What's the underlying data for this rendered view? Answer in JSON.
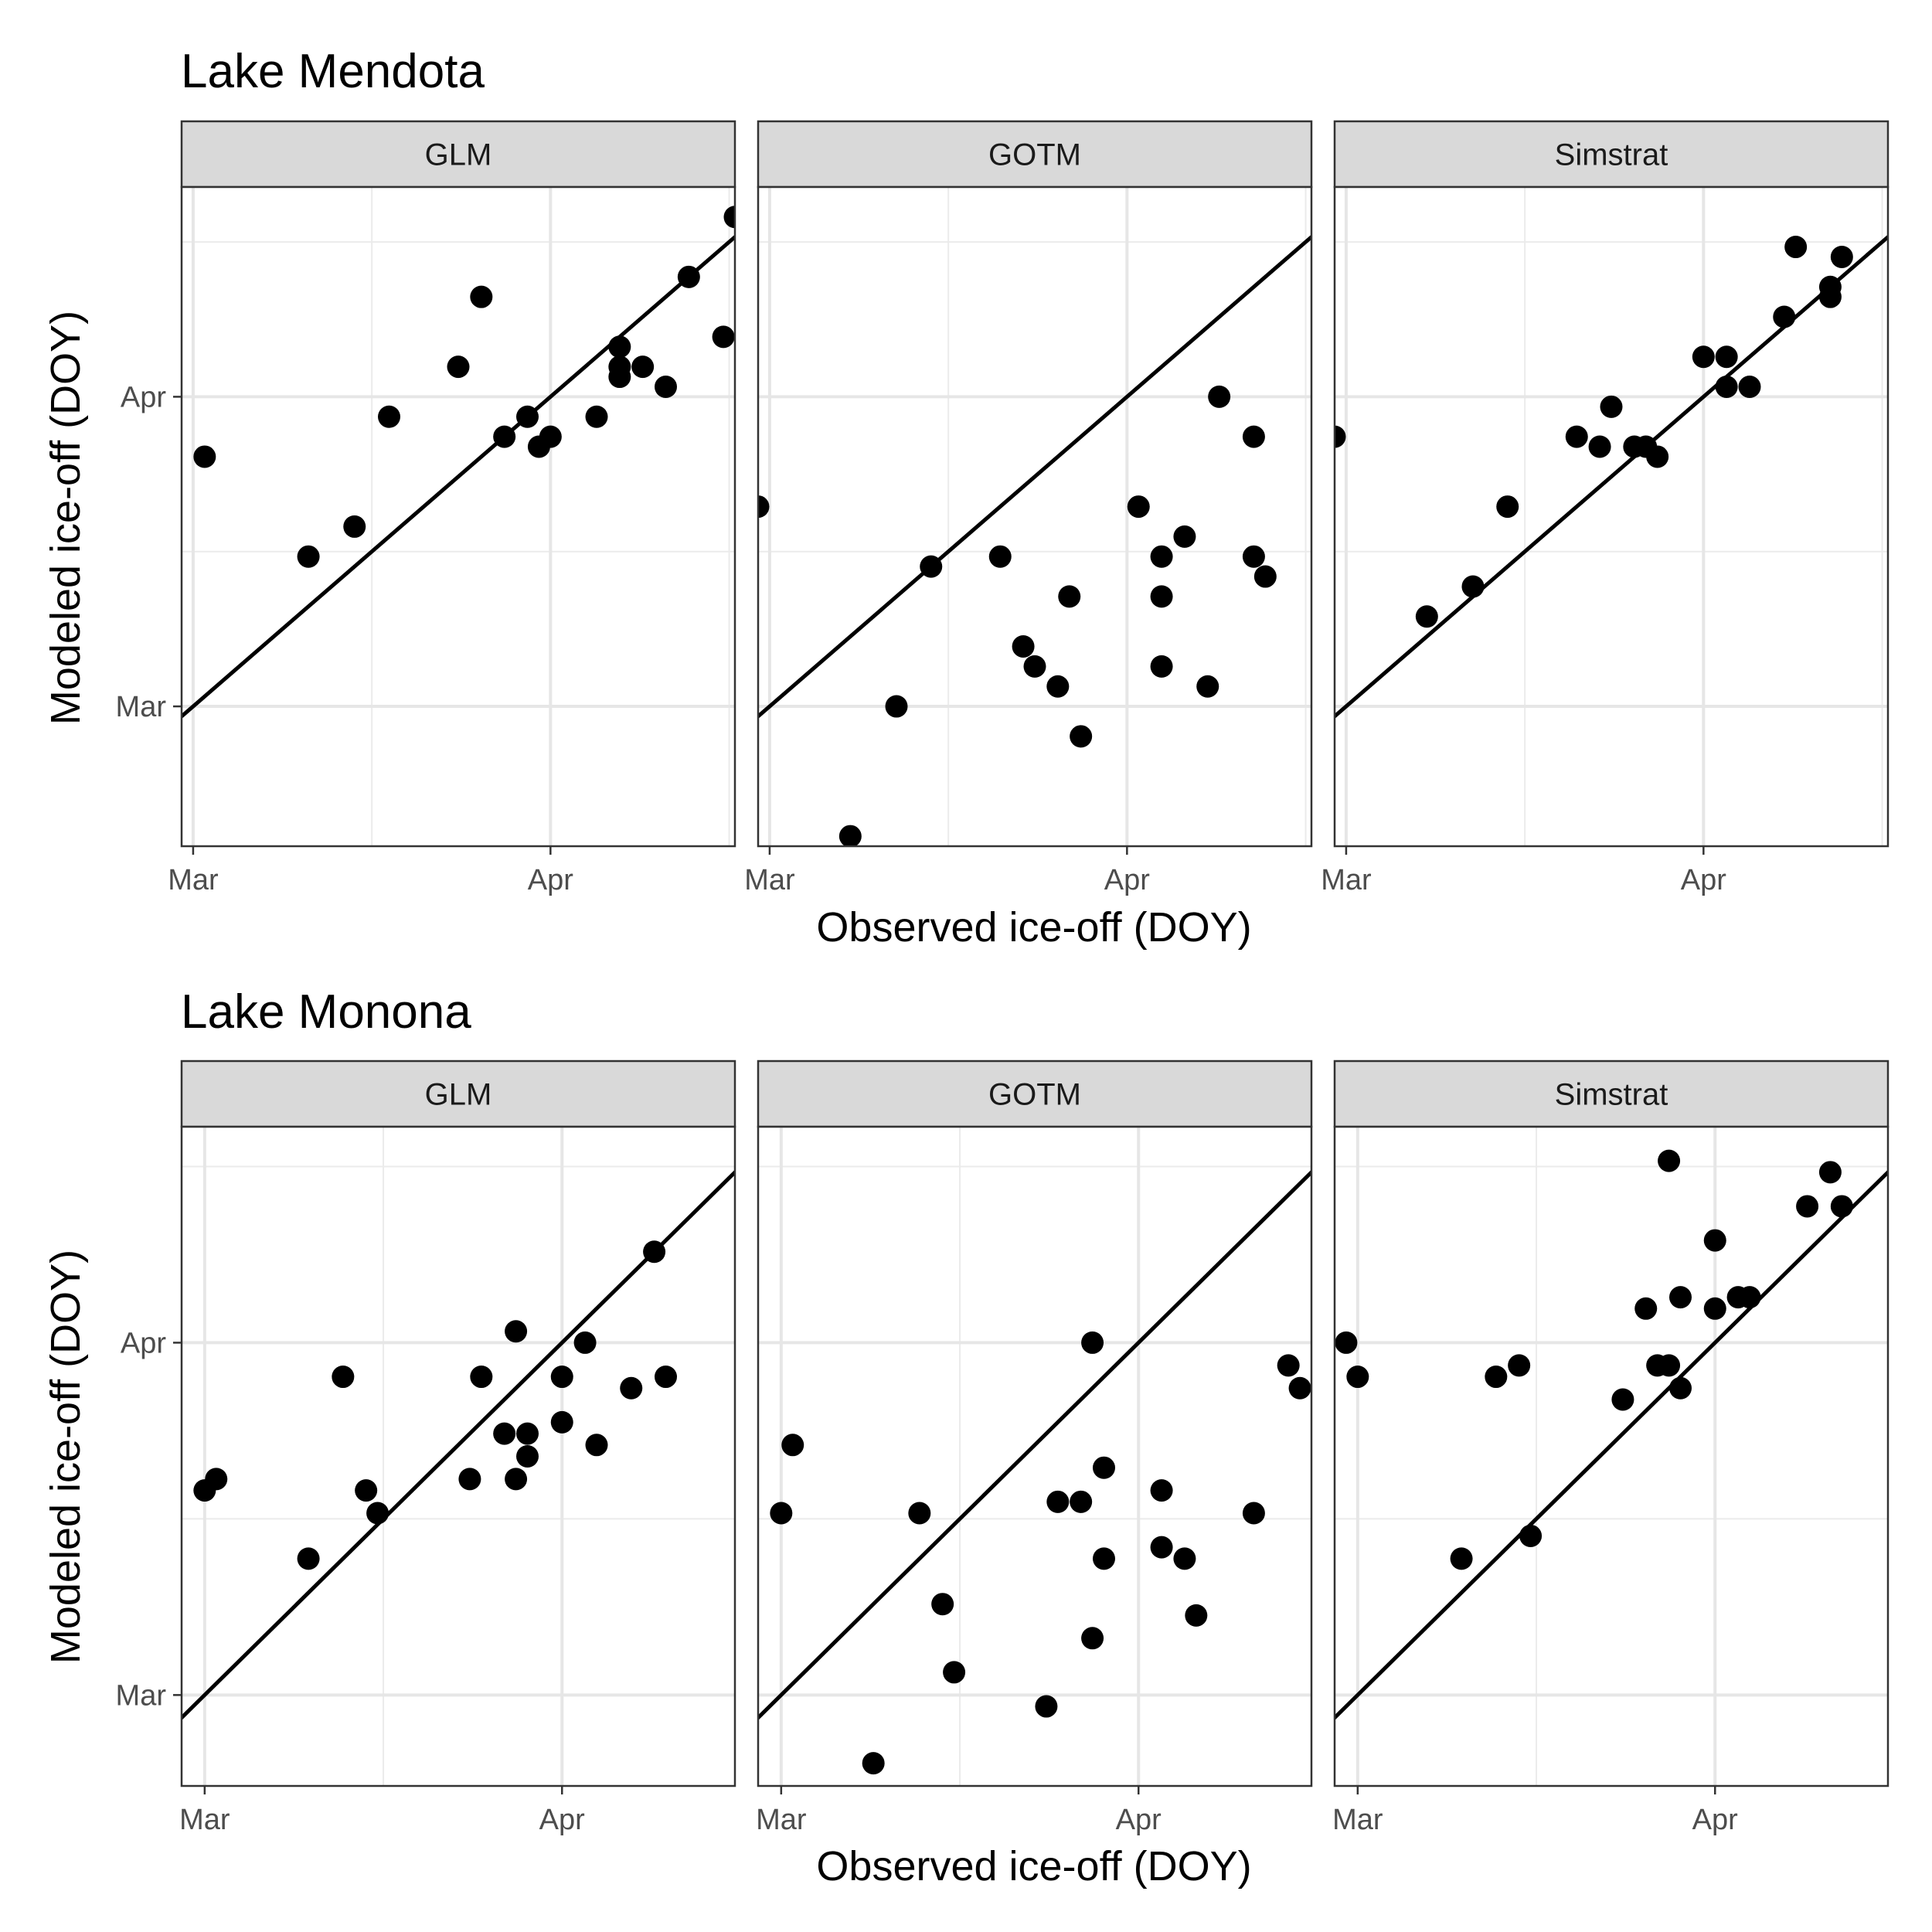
{
  "figure": {
    "xlabel": "Observed ice-off (DOY)",
    "ylabel": "Modeled ice-off (DOY)"
  },
  "chart_data": [
    {
      "type": "scatter",
      "title": "Lake Mendota",
      "xlabel": "Observed ice-off (DOY)",
      "ylabel": "Modeled ice-off (DOY)",
      "grid": true,
      "reference_line": "y = x",
      "xlim": [
        59,
        107
      ],
      "ylim": [
        46,
        112
      ],
      "x_ticks": [
        {
          "label": "Mar",
          "value": 60
        },
        {
          "label": "Apr",
          "value": 91
        }
      ],
      "y_ticks": [
        {
          "label": "Mar",
          "value": 60
        },
        {
          "label": "Apr",
          "value": 91
        }
      ],
      "panels": [
        {
          "name": "GLM",
          "points": [
            [
              61,
              85
            ],
            [
              70,
              75
            ],
            [
              74,
              78
            ],
            [
              77,
              89
            ],
            [
              83,
              94
            ],
            [
              85,
              101
            ],
            [
              87,
              87
            ],
            [
              89,
              89
            ],
            [
              90,
              86
            ],
            [
              91,
              87
            ],
            [
              95,
              89
            ],
            [
              97,
              96
            ],
            [
              97,
              94
            ],
            [
              97,
              93
            ],
            [
              99,
              94
            ],
            [
              101,
              92
            ],
            [
              103,
              103
            ],
            [
              106,
              97
            ],
            [
              107,
              109
            ]
          ]
        },
        {
          "name": "GOTM",
          "points": [
            [
              59,
              80
            ],
            [
              67,
              47
            ],
            [
              71,
              60
            ],
            [
              74,
              74
            ],
            [
              80,
              75
            ],
            [
              82,
              66
            ],
            [
              83,
              64
            ],
            [
              85,
              62
            ],
            [
              86,
              71
            ],
            [
              87,
              57
            ],
            [
              92,
              80
            ],
            [
              94,
              75
            ],
            [
              94,
              71
            ],
            [
              94,
              64
            ],
            [
              96,
              77
            ],
            [
              98,
              62
            ],
            [
              99,
              91
            ],
            [
              102,
              87
            ],
            [
              102,
              75
            ],
            [
              103,
              73
            ]
          ]
        },
        {
          "name": "Simstrat",
          "points": [
            [
              59,
              87
            ],
            [
              67,
              69
            ],
            [
              71,
              72
            ],
            [
              74,
              80
            ],
            [
              80,
              87
            ],
            [
              82,
              86
            ],
            [
              83,
              90
            ],
            [
              85,
              86
            ],
            [
              86,
              86
            ],
            [
              87,
              85
            ],
            [
              91,
              95
            ],
            [
              93,
              95
            ],
            [
              93,
              92
            ],
            [
              95,
              92
            ],
            [
              98,
              99
            ],
            [
              99,
              106
            ],
            [
              102,
              102
            ],
            [
              102,
              101
            ],
            [
              103,
              105
            ]
          ]
        }
      ]
    },
    {
      "type": "scatter",
      "title": "Lake Monona",
      "xlabel": "Observed ice-off (DOY)",
      "ylabel": "Modeled ice-off (DOY)",
      "grid": true,
      "reference_line": "y = x",
      "xlim": [
        58,
        106
      ],
      "ylim": [
        52,
        110
      ],
      "x_ticks": [
        {
          "label": "Mar",
          "value": 60
        },
        {
          "label": "Apr",
          "value": 91
        }
      ],
      "y_ticks": [
        {
          "label": "Mar",
          "value": 60
        },
        {
          "label": "Apr",
          "value": 91
        }
      ],
      "panels": [
        {
          "name": "GLM",
          "points": [
            [
              60,
              78
            ],
            [
              61,
              79
            ],
            [
              69,
              72
            ],
            [
              72,
              88
            ],
            [
              74,
              78
            ],
            [
              75,
              76
            ],
            [
              83,
              79
            ],
            [
              84,
              88
            ],
            [
              86,
              83
            ],
            [
              87,
              79
            ],
            [
              87,
              92
            ],
            [
              88,
              83
            ],
            [
              88,
              81
            ],
            [
              91,
              88
            ],
            [
              91,
              84
            ],
            [
              93,
              91
            ],
            [
              94,
              82
            ],
            [
              97,
              87
            ],
            [
              99,
              99
            ],
            [
              100,
              88
            ]
          ]
        },
        {
          "name": "GOTM",
          "points": [
            [
              60,
              76
            ],
            [
              61,
              82
            ],
            [
              68,
              54
            ],
            [
              72,
              76
            ],
            [
              74,
              68
            ],
            [
              75,
              62
            ],
            [
              83,
              59
            ],
            [
              84,
              77
            ],
            [
              86,
              77
            ],
            [
              87,
              65
            ],
            [
              87,
              91
            ],
            [
              88,
              72
            ],
            [
              88,
              80
            ],
            [
              93,
              73
            ],
            [
              93,
              78
            ],
            [
              95,
              72
            ],
            [
              96,
              67
            ],
            [
              101,
              76
            ],
            [
              104,
              89
            ],
            [
              105,
              87
            ]
          ]
        },
        {
          "name": "Simstrat",
          "points": [
            [
              59,
              91
            ],
            [
              60,
              88
            ],
            [
              69,
              72
            ],
            [
              72,
              88
            ],
            [
              74,
              89
            ],
            [
              75,
              74
            ],
            [
              83,
              86
            ],
            [
              85,
              94
            ],
            [
              86,
              89
            ],
            [
              87,
              89
            ],
            [
              87,
              107
            ],
            [
              88,
              87
            ],
            [
              88,
              95
            ],
            [
              91,
              94
            ],
            [
              91,
              100
            ],
            [
              93,
              95
            ],
            [
              94,
              95
            ],
            [
              99,
              103
            ],
            [
              101,
              106
            ],
            [
              102,
              103
            ]
          ]
        }
      ]
    }
  ]
}
